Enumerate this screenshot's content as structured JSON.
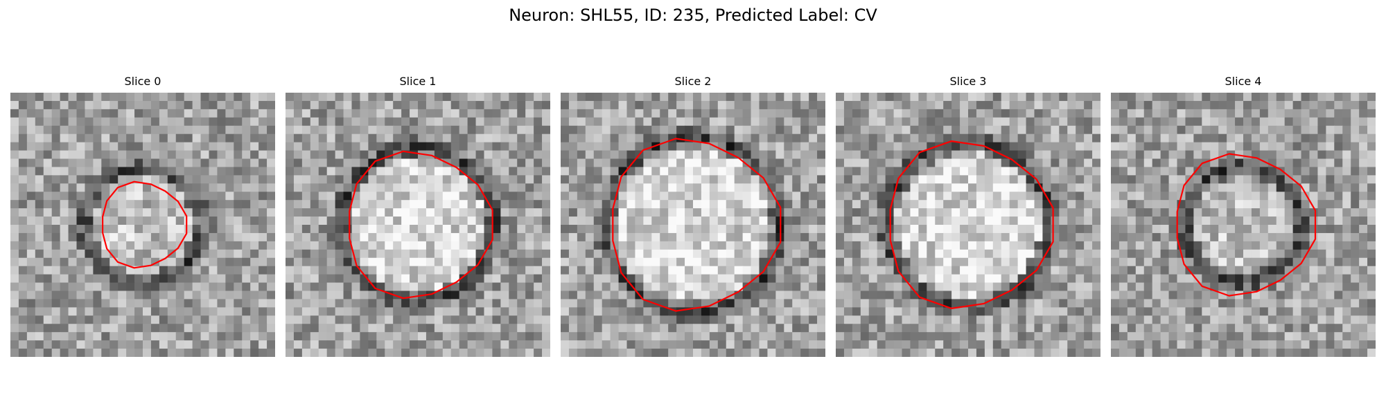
{
  "figure": {
    "title": "Neuron: SHL55, ID: 235, Predicted Label: CV",
    "grid_size": 32,
    "contour_color": "#ff0000"
  },
  "panels": [
    {
      "title": "Slice 0",
      "image": "grayscale EM patch with small dark ring and bright center",
      "contour_radius": 0.17,
      "ring_radius": 0.22,
      "seed": 11
    },
    {
      "title": "Slice 1",
      "image": "grayscale EM patch with large bright circular vesicle",
      "contour_radius": 0.29,
      "ring_radius": 0.29,
      "seed": 23
    },
    {
      "title": "Slice 2",
      "image": "grayscale EM patch with large bright circular vesicle",
      "contour_radius": 0.34,
      "ring_radius": 0.33,
      "seed": 37
    },
    {
      "title": "Slice 3",
      "image": "grayscale EM patch with large bright circular vesicle",
      "contour_radius": 0.33,
      "ring_radius": 0.31,
      "seed": 41
    },
    {
      "title": "Slice 4",
      "image": "grayscale EM patch with dark ring",
      "contour_radius": 0.28,
      "ring_radius": 0.22,
      "seed": 53
    }
  ]
}
